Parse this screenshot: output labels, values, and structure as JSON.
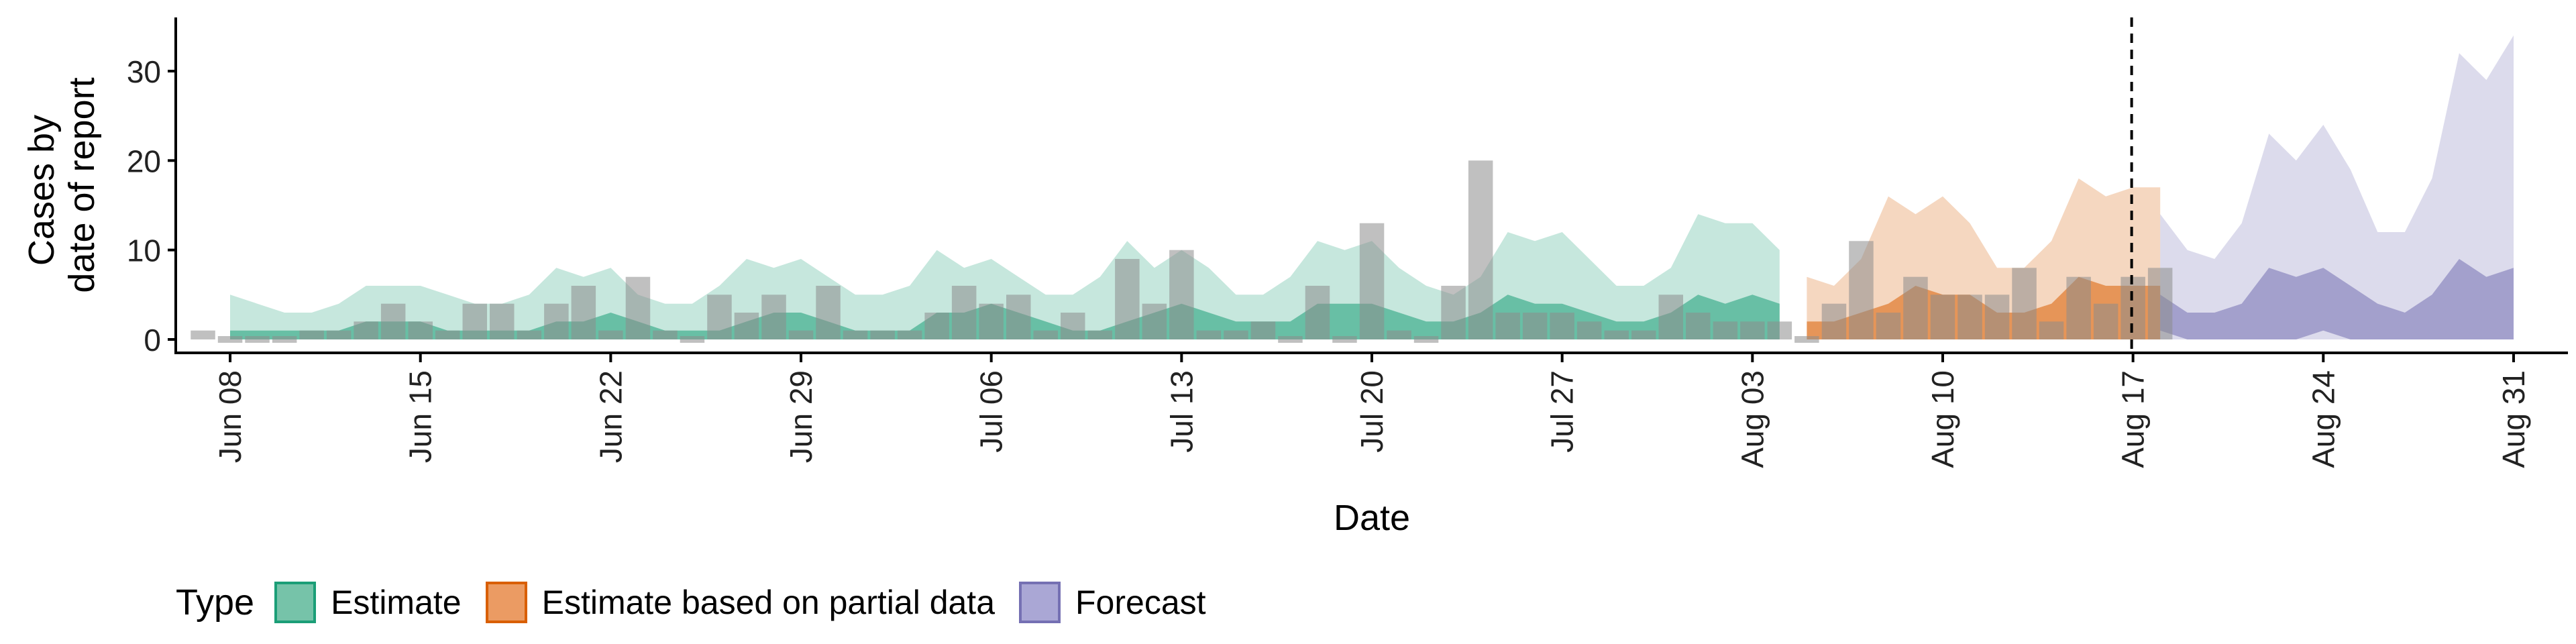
{
  "chart_data": {
    "type": "area",
    "xlabel": "Date",
    "ylabel": [
      "Cases by",
      "date of report"
    ],
    "ylim": [
      -1.5,
      36
    ],
    "yticks": [
      0,
      10,
      20,
      30
    ],
    "x_start": "2020-06-06",
    "x_end": "2020-09-02",
    "xticks": [
      {
        "date": "2020-06-08",
        "label": "Jun 08"
      },
      {
        "date": "2020-06-15",
        "label": "Jun 15"
      },
      {
        "date": "2020-06-22",
        "label": "Jun 22"
      },
      {
        "date": "2020-06-29",
        "label": "Jun 29"
      },
      {
        "date": "2020-07-06",
        "label": "Jul 06"
      },
      {
        "date": "2020-07-13",
        "label": "Jul 13"
      },
      {
        "date": "2020-07-20",
        "label": "Jul 20"
      },
      {
        "date": "2020-07-27",
        "label": "Jul 27"
      },
      {
        "date": "2020-08-03",
        "label": "Aug 03"
      },
      {
        "date": "2020-08-10",
        "label": "Aug 10"
      },
      {
        "date": "2020-08-17",
        "label": "Aug 17"
      },
      {
        "date": "2020-08-24",
        "label": "Aug 24"
      },
      {
        "date": "2020-08-31",
        "label": "Aug 31"
      }
    ],
    "vline_date": "2020-08-17",
    "reported_cases": {
      "start": "2020-06-07",
      "values": [
        1,
        0,
        0,
        0,
        1,
        1,
        2,
        4,
        2,
        1,
        4,
        4,
        1,
        4,
        6,
        1,
        7,
        1,
        0,
        5,
        3,
        5,
        1,
        6,
        1,
        1,
        1,
        3,
        6,
        4,
        5,
        1,
        3,
        1,
        9,
        4,
        10,
        1,
        1,
        2,
        0,
        6,
        0,
        13,
        1,
        0,
        6,
        20,
        3,
        3,
        3,
        2,
        1,
        1,
        5,
        3,
        2,
        2,
        2,
        0,
        4,
        11,
        3,
        7,
        5,
        5,
        5,
        8,
        2,
        7,
        4,
        7,
        8
      ]
    },
    "series": [
      {
        "name": "Estimate",
        "color": "#1b9e77",
        "start": "2020-06-08",
        "outer_lower": [
          0,
          0,
          0,
          0,
          0,
          0,
          0,
          0,
          0,
          0,
          0,
          0,
          0,
          0,
          0,
          0,
          0,
          0,
          0,
          0,
          0,
          0,
          0,
          0,
          0,
          0,
          0,
          0,
          0,
          0,
          0,
          0,
          0,
          0,
          0,
          0,
          0,
          0,
          0,
          0,
          0,
          0,
          0,
          0,
          0,
          0,
          0,
          0,
          0,
          0,
          0,
          0,
          0,
          0,
          0,
          0,
          0,
          0
        ],
        "outer_upper": [
          5,
          4,
          3,
          3,
          4,
          6,
          6,
          6,
          5,
          4,
          4,
          5,
          8,
          7,
          8,
          5,
          4,
          4,
          6,
          9,
          8,
          9,
          7,
          5,
          5,
          6,
          10,
          8,
          9,
          7,
          5,
          5,
          7,
          11,
          8,
          10,
          8,
          5,
          5,
          7,
          11,
          10,
          11,
          8,
          6,
          5,
          7,
          12,
          11,
          12,
          9,
          6,
          6,
          8,
          14,
          13,
          13,
          10
        ],
        "inner_lower": [
          0,
          0,
          0,
          0,
          0,
          0,
          0,
          0,
          0,
          0,
          0,
          0,
          0,
          0,
          0,
          0,
          0,
          0,
          0,
          0,
          0,
          0,
          0,
          0,
          0,
          0,
          0,
          0,
          0,
          0,
          0,
          0,
          0,
          0,
          0,
          0,
          0,
          0,
          0,
          0,
          0,
          0,
          0,
          0,
          0,
          0,
          0,
          0,
          0,
          0,
          0,
          0,
          0,
          0,
          0,
          0,
          0,
          0
        ],
        "inner_upper": [
          1,
          1,
          1,
          1,
          1,
          2,
          2,
          2,
          1,
          1,
          1,
          1,
          2,
          2,
          3,
          2,
          1,
          1,
          1,
          2,
          3,
          3,
          2,
          1,
          1,
          1,
          3,
          3,
          4,
          3,
          2,
          1,
          1,
          2,
          3,
          4,
          3,
          2,
          2,
          2,
          4,
          4,
          4,
          3,
          2,
          2,
          3,
          5,
          4,
          4,
          3,
          2,
          2,
          3,
          5,
          4,
          5,
          4
        ]
      },
      {
        "name": "Estimate based on partial data",
        "color": "#d95f02",
        "start": "2020-08-05",
        "outer_lower": [
          0,
          0,
          0,
          0,
          0,
          0,
          0,
          0,
          0,
          0,
          0,
          0,
          0,
          0
        ],
        "outer_upper": [
          7,
          6,
          9,
          16,
          14,
          16,
          13,
          8,
          8,
          11,
          18,
          16,
          17,
          17
        ],
        "inner_lower": [
          0,
          0,
          0,
          0,
          0,
          0,
          0,
          0,
          0,
          0,
          0,
          0,
          0,
          0
        ],
        "inner_upper": [
          2,
          2,
          3,
          4,
          6,
          5,
          5,
          3,
          3,
          4,
          7,
          6,
          6,
          6
        ]
      },
      {
        "name": "Forecast",
        "color": "#7570b3",
        "start": "2020-08-18",
        "outer_lower": [
          0,
          0,
          0,
          0,
          0,
          0,
          0,
          0,
          0,
          0,
          0,
          0,
          0,
          0
        ],
        "outer_upper": [
          14,
          10,
          9,
          13,
          23,
          20,
          24,
          19,
          12,
          12,
          18,
          32,
          29,
          34
        ],
        "inner_lower": [
          1,
          0,
          0,
          0,
          0,
          0,
          1,
          0,
          0,
          0,
          0,
          0,
          0,
          0
        ],
        "inner_upper": [
          5,
          3,
          3,
          4,
          8,
          7,
          8,
          6,
          4,
          3,
          5,
          9,
          7,
          8
        ]
      }
    ]
  },
  "legend": {
    "title": "Type",
    "items": [
      {
        "label": "Estimate",
        "fill": "#76c3a9",
        "border": "#1b9e77"
      },
      {
        "label": "Estimate based on partial data",
        "fill": "#eb9b63",
        "border": "#d95f02"
      },
      {
        "label": "Forecast",
        "fill": "#aaa7d5",
        "border": "#7570b3"
      }
    ]
  }
}
